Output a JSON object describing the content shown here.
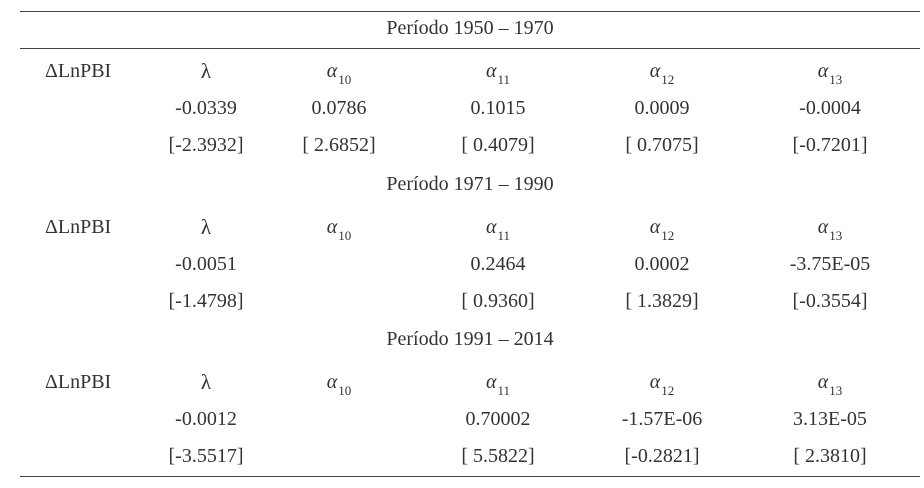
{
  "table": {
    "blocks": [
      {
        "period": "Período 1950 – 1970",
        "variable": "ΔLnPBI",
        "headers": [
          {
            "symbol": "λ",
            "sub": ""
          },
          {
            "symbol": "α",
            "sub": "10"
          },
          {
            "symbol": "α",
            "sub": "11"
          },
          {
            "symbol": "α",
            "sub": "12"
          },
          {
            "symbol": "α",
            "sub": "13"
          }
        ],
        "coefficients": [
          "-0.0339",
          "0.0786",
          "0.1015",
          "0.0009",
          "-0.0004"
        ],
        "tstats": [
          "[-2.3932]",
          "[ 2.6852]",
          "[ 0.4079]",
          "[ 0.7075]",
          "[-0.7201]"
        ]
      },
      {
        "period": "Período 1971 – 1990",
        "variable": "ΔLnPBI",
        "headers": [
          {
            "symbol": "λ",
            "sub": ""
          },
          {
            "symbol": "α",
            "sub": "10"
          },
          {
            "symbol": "α",
            "sub": "11"
          },
          {
            "symbol": "α",
            "sub": "12"
          },
          {
            "symbol": "α",
            "sub": "13"
          }
        ],
        "coefficients": [
          "-0.0051",
          "",
          "0.2464",
          "0.0002",
          "-3.75E-05"
        ],
        "tstats": [
          "[-1.4798]",
          "",
          "[ 0.9360]",
          "[ 1.3829]",
          "[-0.3554]"
        ]
      },
      {
        "period": "Período 1991 – 2014",
        "variable": "ΔLnPBI",
        "headers": [
          {
            "symbol": "λ",
            "sub": ""
          },
          {
            "symbol": "α",
            "sub": "10"
          },
          {
            "symbol": "α",
            "sub": "11"
          },
          {
            "symbol": "α",
            "sub": "12"
          },
          {
            "symbol": "α",
            "sub": "13"
          }
        ],
        "coefficients": [
          "-0.0012",
          "",
          "0.70002",
          "-1.57E-06",
          "3.13E-05"
        ],
        "tstats": [
          "[-3.5517]",
          "",
          "[ 5.5822]",
          "[-0.2821]",
          "[ 2.3810]"
        ]
      }
    ]
  }
}
